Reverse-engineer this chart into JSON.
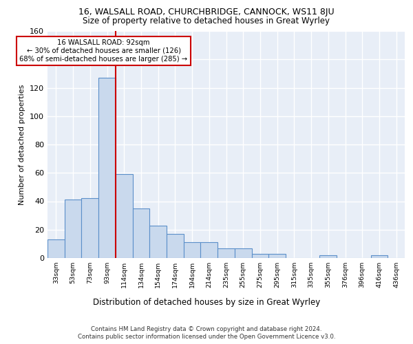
{
  "title1": "16, WALSALL ROAD, CHURCHBRIDGE, CANNOCK, WS11 8JU",
  "title2": "Size of property relative to detached houses in Great Wyrley",
  "xlabel": "Distribution of detached houses by size in Great Wyrley",
  "ylabel": "Number of detached properties",
  "bin_labels": [
    "33sqm",
    "53sqm",
    "73sqm",
    "93sqm",
    "114sqm",
    "134sqm",
    "154sqm",
    "174sqm",
    "194sqm",
    "214sqm",
    "235sqm",
    "255sqm",
    "275sqm",
    "295sqm",
    "315sqm",
    "335sqm",
    "355sqm",
    "376sqm",
    "396sqm",
    "416sqm",
    "436sqm"
  ],
  "bar_heights": [
    13,
    41,
    42,
    127,
    59,
    35,
    23,
    17,
    11,
    11,
    7,
    7,
    3,
    3,
    0,
    0,
    2,
    0,
    0,
    2,
    0
  ],
  "bar_color": "#c9d9ed",
  "bar_edge_color": "#5b8fc9",
  "background_color": "#e8eef7",
  "grid_color": "#ffffff",
  "redline_x": 3.5,
  "annotation_text": "16 WALSALL ROAD: 92sqm\n← 30% of detached houses are smaller (126)\n68% of semi-detached houses are larger (285) →",
  "annotation_box_color": "#ffffff",
  "annotation_box_edge": "#cc0000",
  "footnote1": "Contains HM Land Registry data © Crown copyright and database right 2024.",
  "footnote2": "Contains public sector information licensed under the Open Government Licence v3.0.",
  "ylim": [
    0,
    160
  ],
  "yticks": [
    0,
    20,
    40,
    60,
    80,
    100,
    120,
    140,
    160
  ]
}
